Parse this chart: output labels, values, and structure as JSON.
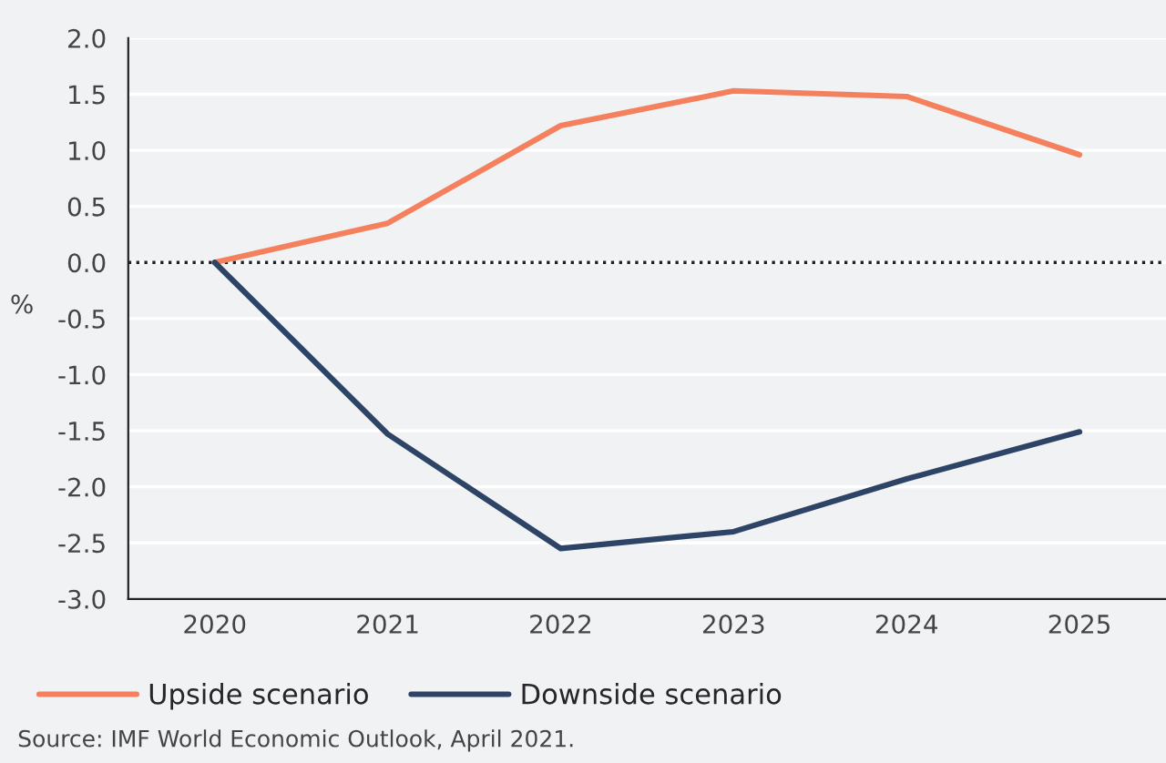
{
  "chart_data": {
    "type": "line",
    "categories": [
      "2020",
      "2021",
      "2022",
      "2023",
      "2024",
      "2025"
    ],
    "series": [
      {
        "name": "Upside scenario",
        "color": "#f4805d",
        "values": [
          0,
          0.35,
          1.22,
          1.53,
          1.48,
          0.96
        ]
      },
      {
        "name": "Downside scenario",
        "color": "#2e4466",
        "values": [
          0,
          -1.53,
          -2.55,
          -2.4,
          -1.93,
          -1.51
        ]
      }
    ],
    "ylabel": "%",
    "ylim": [
      -3.0,
      2.0
    ],
    "yticks": [
      {
        "value": -3,
        "label": "-3.0"
      },
      {
        "value": -2.5,
        "label": "-2.5"
      },
      {
        "value": -2,
        "label": "-2.0"
      },
      {
        "value": -1.5,
        "label": "-1.5"
      },
      {
        "value": -1,
        "label": "-1.0"
      },
      {
        "value": -0.5,
        "label": "-0.5"
      },
      {
        "value": 0,
        "label": "0.0"
      },
      {
        "value": 0.5,
        "label": "0.5"
      },
      {
        "value": 1,
        "label": "1.0"
      },
      {
        "value": 1.5,
        "label": "1.5"
      },
      {
        "value": 2,
        "label": "2.0"
      }
    ],
    "ref_lines": [
      {
        "axis": "y",
        "value": 0,
        "color": "#222222",
        "line_style": "dotted"
      }
    ],
    "grid": "y",
    "legend": "bottom",
    "annotations": [
      "Source: IMF World Economic Outlook, April 2021."
    ]
  }
}
